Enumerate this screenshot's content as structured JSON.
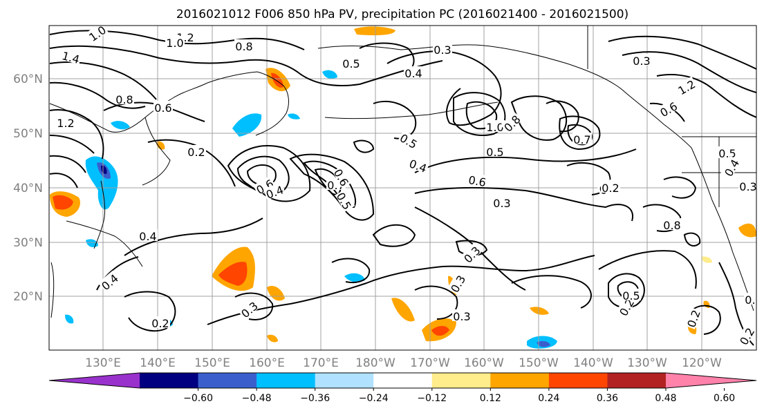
{
  "title": "2016021012 F006 850 hPa PV, precipitation PC (2016021400 - 2016021500)",
  "map": {
    "longitude_labels": [
      "130°E",
      "140°E",
      "150°E",
      "160°E",
      "170°E",
      "180°W",
      "170°W",
      "160°W",
      "150°W",
      "140°W",
      "130°W",
      "120°W"
    ],
    "latitude_labels": [
      "60°N",
      "50°N",
      "40°N",
      "30°N",
      "20°N"
    ],
    "grid_color": "#a0a0a0"
  },
  "colorbar": {
    "tick_labels": [
      "−0.60",
      "−0.48",
      "−0.36",
      "−0.24",
      "−0.12",
      "0.12",
      "0.24",
      "0.36",
      "0.48",
      "0.60"
    ],
    "colors": [
      "#9932cc",
      "#000080",
      "#3a5fcd",
      "#00bfff",
      "#b0e2ff",
      "#ffffff",
      "#ffec8b",
      "#ffa500",
      "#ff4500",
      "#b22222",
      "#ff82ab"
    ]
  },
  "pv_contour_labels": [
    "1.0",
    "1.2",
    "1.4",
    "1.0",
    "0.8",
    "0.8",
    "0.6",
    "0.2",
    "1.2",
    "0.4",
    "0.6",
    "0.4",
    "0.5",
    "0.7",
    "0.6",
    "0.5",
    "0.4",
    "0.6",
    "0.3",
    "1.0",
    "0.8",
    "0.5",
    "0.7",
    "0.6",
    "0.3",
    "0.2",
    "0.4",
    "0.8",
    "1.2",
    "0.6",
    "0.5",
    "0.4",
    "0.3",
    "0.2",
    "0.2",
    "0.3",
    "0.3",
    "0.2",
    "0.3",
    "0.5",
    "0.2",
    "0.4",
    "0.3",
    "0.5",
    "0.3",
    "0.2"
  ]
}
